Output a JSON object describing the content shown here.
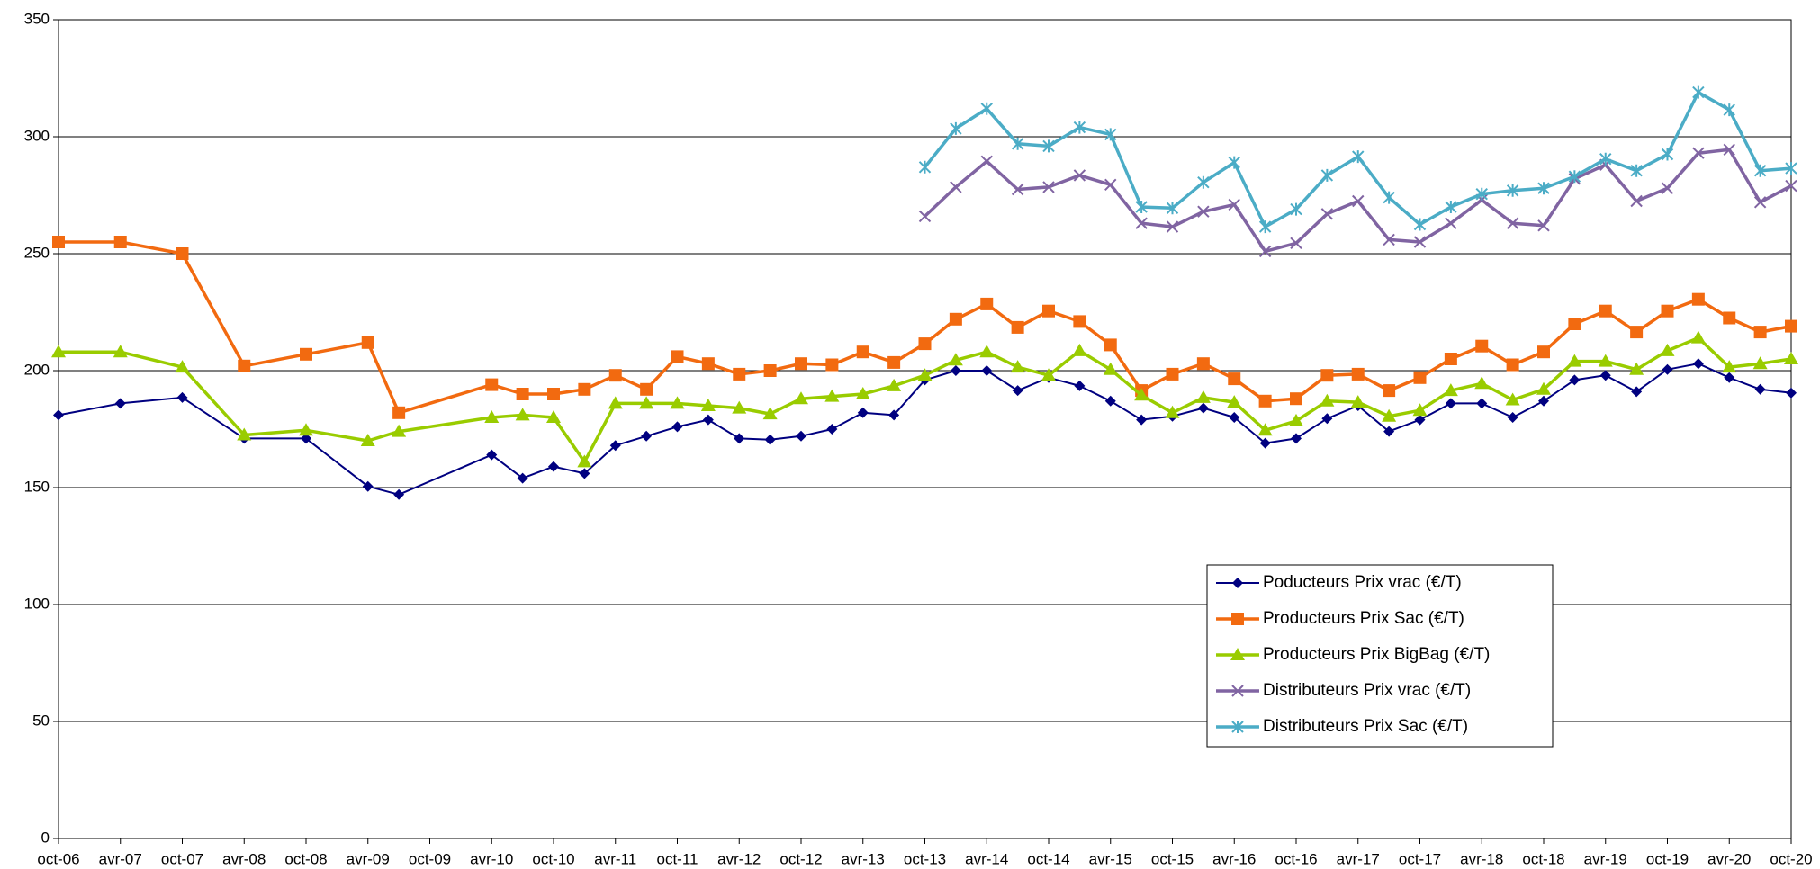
{
  "chart_data": {
    "type": "line",
    "x": [
      "2006-10",
      "2007-04",
      "2007-10",
      "2008-04",
      "2008-10",
      "2009-04",
      "2009-07",
      "2010-04",
      "2010-07",
      "2010-10",
      "2011-01",
      "2011-04",
      "2011-07",
      "2011-10",
      "2012-01",
      "2012-04",
      "2012-07",
      "2012-10",
      "2013-01",
      "2013-04",
      "2013-07",
      "2013-10",
      "2014-01",
      "2014-04",
      "2014-07",
      "2014-10",
      "2015-01",
      "2015-04",
      "2015-07",
      "2015-10",
      "2016-01",
      "2016-04",
      "2016-07",
      "2016-10",
      "2017-01",
      "2017-04",
      "2017-07",
      "2017-10",
      "2018-01",
      "2018-04",
      "2018-07",
      "2018-10",
      "2019-01",
      "2019-04",
      "2019-07",
      "2019-10",
      "2020-01",
      "2020-04",
      "2020-07",
      "2020-10"
    ],
    "series": [
      {
        "name": "Poducteurs Prix vrac (€/T)",
        "color": "#000080",
        "marker": "diamond",
        "values": [
          181,
          186,
          188.5,
          171,
          171,
          150.5,
          147,
          164,
          154,
          159,
          156,
          168,
          172,
          176,
          179,
          171,
          170.5,
          172,
          175,
          182,
          181,
          196,
          200,
          200,
          191.5,
          197,
          193.5,
          187,
          179,
          180.5,
          184,
          180,
          169,
          171,
          179.5,
          185,
          174,
          179,
          186,
          186,
          180,
          187,
          196,
          198,
          191,
          200.5,
          203,
          197,
          192,
          190.5
        ]
      },
      {
        "name": "Producteurs Prix Sac (€/T)",
        "color": "#f26a10",
        "marker": "square",
        "values": [
          255,
          255,
          250,
          202,
          207,
          212,
          182,
          194,
          190,
          190,
          192,
          198,
          192,
          206,
          203,
          198.5,
          200,
          203,
          202.5,
          208,
          203.5,
          211.5,
          222,
          228.5,
          218.5,
          225.5,
          221,
          211,
          191.5,
          198.5,
          203,
          196.5,
          187,
          188,
          198,
          198.5,
          191.5,
          197,
          205,
          210.5,
          202.5,
          208,
          220,
          225.5,
          216.5,
          225.5,
          230.5,
          222.5,
          216.5,
          219
        ]
      },
      {
        "name": "Producteurs Prix BigBag (€/T)",
        "color": "#99cc00",
        "marker": "triangle",
        "values": [
          208,
          208,
          201.5,
          172.5,
          174.5,
          170,
          174,
          180,
          181,
          180,
          161,
          186,
          186,
          186,
          185,
          184,
          181.5,
          188,
          189,
          190,
          193.5,
          198,
          204.5,
          208,
          201.5,
          198,
          208.5,
          200.5,
          189.5,
          182,
          188.5,
          186.5,
          174.5,
          178.5,
          187,
          186.5,
          180.5,
          183,
          191.5,
          194.5,
          187.5,
          192,
          204,
          204,
          200.5,
          208.5,
          214,
          201.5,
          203,
          205
        ]
      },
      {
        "name": "Distributeurs Prix vrac (€/T)",
        "color": "#8064a2",
        "marker": "cross",
        "values": [
          null,
          null,
          null,
          null,
          null,
          null,
          null,
          null,
          null,
          null,
          null,
          null,
          null,
          null,
          null,
          null,
          null,
          null,
          null,
          null,
          null,
          266,
          278.5,
          289.5,
          277.5,
          278.5,
          283.5,
          279.5,
          263,
          261.5,
          268,
          271,
          251,
          254.5,
          267,
          272.5,
          256,
          255,
          263,
          273,
          263,
          262,
          282,
          288,
          272.5,
          278,
          293,
          294.5,
          272,
          279
        ]
      },
      {
        "name": "Distributeurs Prix Sac (€/T)",
        "color": "#4bacc6",
        "marker": "star",
        "values": [
          null,
          null,
          null,
          null,
          null,
          null,
          null,
          null,
          null,
          null,
          null,
          null,
          null,
          null,
          null,
          null,
          null,
          null,
          null,
          null,
          null,
          287,
          303.5,
          312,
          297,
          296,
          304,
          301,
          270,
          269.5,
          280.5,
          289,
          261.5,
          269,
          283.5,
          291.5,
          274,
          262.5,
          270,
          275.5,
          277,
          278,
          283,
          290.5,
          285.5,
          292.5,
          319,
          311.5,
          285.5,
          286.5
        ]
      }
    ],
    "xlim": [
      "2006-10",
      "2020-10"
    ],
    "xticks": [
      {
        "value": "2006-10",
        "label": "oct-06"
      },
      {
        "value": "2007-04",
        "label": "avr-07"
      },
      {
        "value": "2007-10",
        "label": "oct-07"
      },
      {
        "value": "2008-04",
        "label": "avr-08"
      },
      {
        "value": "2008-10",
        "label": "oct-08"
      },
      {
        "value": "2009-04",
        "label": "avr-09"
      },
      {
        "value": "2009-10",
        "label": "oct-09"
      },
      {
        "value": "2010-04",
        "label": "avr-10"
      },
      {
        "value": "2010-10",
        "label": "oct-10"
      },
      {
        "value": "2011-04",
        "label": "avr-11"
      },
      {
        "value": "2011-10",
        "label": "oct-11"
      },
      {
        "value": "2012-04",
        "label": "avr-12"
      },
      {
        "value": "2012-10",
        "label": "oct-12"
      },
      {
        "value": "2013-04",
        "label": "avr-13"
      },
      {
        "value": "2013-10",
        "label": "oct-13"
      },
      {
        "value": "2014-04",
        "label": "avr-14"
      },
      {
        "value": "2014-10",
        "label": "oct-14"
      },
      {
        "value": "2015-04",
        "label": "avr-15"
      },
      {
        "value": "2015-10",
        "label": "oct-15"
      },
      {
        "value": "2016-04",
        "label": "avr-16"
      },
      {
        "value": "2016-10",
        "label": "oct-16"
      },
      {
        "value": "2017-04",
        "label": "avr-17"
      },
      {
        "value": "2017-10",
        "label": "oct-17"
      },
      {
        "value": "2018-04",
        "label": "avr-18"
      },
      {
        "value": "2018-10",
        "label": "oct-18"
      },
      {
        "value": "2019-04",
        "label": "avr-19"
      },
      {
        "value": "2019-10",
        "label": "oct-19"
      },
      {
        "value": "2020-04",
        "label": "avr-20"
      },
      {
        "value": "2020-10",
        "label": "oct-20"
      }
    ],
    "ylim": [
      0,
      350
    ],
    "yticks": [
      0,
      50,
      100,
      150,
      200,
      250,
      300,
      350
    ],
    "grid": true
  }
}
